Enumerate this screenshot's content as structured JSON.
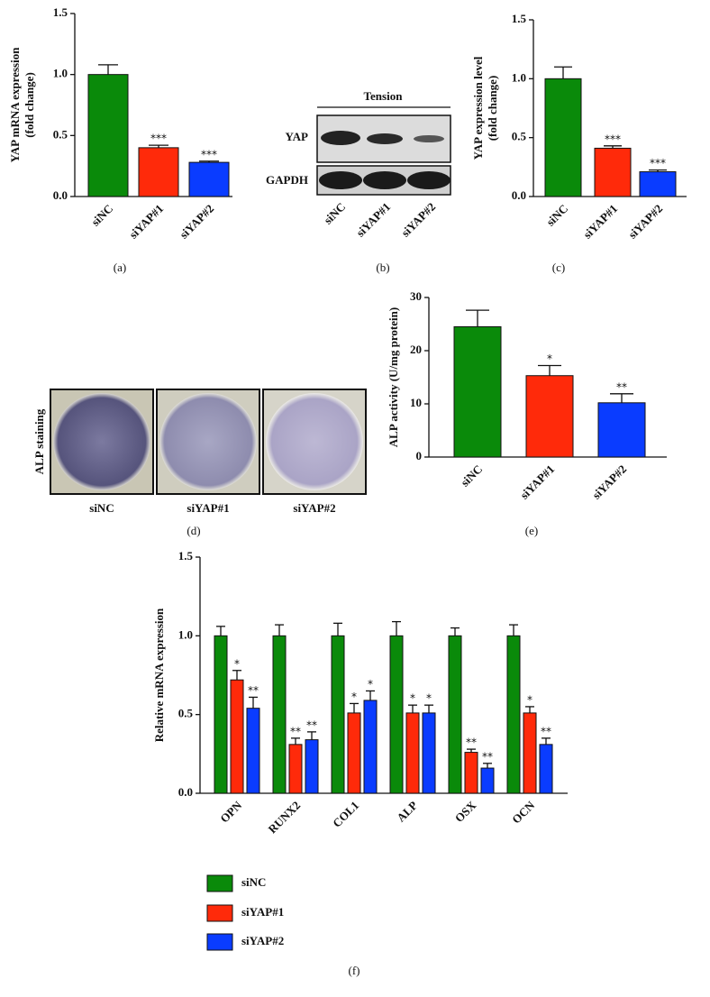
{
  "chart_data": [
    {
      "type": "bar",
      "caption": "(a)",
      "ylabel": [
        "YAP mRNA expression",
        "(fold change)"
      ],
      "categories": [
        "siNC",
        "siYAP#1",
        "siYAP#2"
      ],
      "values": [
        1.0,
        0.4,
        0.28
      ],
      "errors": [
        0.08,
        0.02,
        0.01
      ],
      "annotations": [
        null,
        "***",
        "***"
      ],
      "colors": [
        "#0a8a0a",
        "#ff2a0a",
        "#0a3cff"
      ],
      "ylim": [
        0,
        1.5
      ],
      "yticks": [
        {
          "value": 0,
          "label": "0.0"
        },
        {
          "value": 0.5,
          "label": "0.5"
        },
        {
          "value": 1,
          "label": "1.0"
        },
        {
          "value": 1.5,
          "label": "1.5"
        }
      ]
    },
    {
      "type": "bar",
      "caption": "(c)",
      "ylabel": [
        "YAP expression level",
        "(fold change)"
      ],
      "categories": [
        "siNC",
        "siYAP#1",
        "siYAP#2"
      ],
      "values": [
        1.0,
        0.41,
        0.21
      ],
      "errors": [
        0.1,
        0.02,
        0.015
      ],
      "annotations": [
        null,
        "***",
        "***"
      ],
      "colors": [
        "#0a8a0a",
        "#ff2a0a",
        "#0a3cff"
      ],
      "ylim": [
        0,
        1.5
      ],
      "yticks": [
        {
          "value": 0,
          "label": "0.0"
        },
        {
          "value": 0.5,
          "label": "0.5"
        },
        {
          "value": 1,
          "label": "1.0"
        },
        {
          "value": 1.5,
          "label": "1.5"
        }
      ]
    },
    {
      "type": "bar",
      "caption": "(e)",
      "ylabel": [
        "ALP activity (U/mg protein)"
      ],
      "categories": [
        "siNC",
        "siYAP#1",
        "siYAP#2"
      ],
      "values": [
        24.5,
        15.3,
        10.2
      ],
      "errors": [
        3.1,
        1.9,
        1.7
      ],
      "annotations": [
        null,
        "*",
        "**"
      ],
      "colors": [
        "#0a8a0a",
        "#ff2a0a",
        "#0a3cff"
      ],
      "ylim": [
        0,
        30
      ],
      "yticks": [
        0,
        10,
        20,
        30
      ]
    },
    {
      "type": "grouped-bar",
      "caption": "(f)",
      "ylabel": [
        "Relative mRNA expression"
      ],
      "categories": [
        "OPN",
        "RUNX2",
        "COL1",
        "ALP",
        "OSX",
        "OCN"
      ],
      "series": [
        {
          "name": "siNC",
          "color": "#0a8a0a",
          "values": [
            1,
            1,
            1,
            1,
            1,
            1
          ],
          "errors": [
            0.06,
            0.07,
            0.08,
            0.09,
            0.05,
            0.07
          ],
          "annotations": [
            null,
            null,
            null,
            null,
            null,
            null
          ]
        },
        {
          "name": "siYAP#1",
          "color": "#ff2a0a",
          "values": [
            0.72,
            0.31,
            0.51,
            0.51,
            0.26,
            0.51
          ],
          "errors": [
            0.06,
            0.04,
            0.06,
            0.05,
            0.02,
            0.04
          ],
          "annotations": [
            "*",
            "**",
            "*",
            "*",
            "**",
            "*"
          ]
        },
        {
          "name": "siYAP#2",
          "color": "#0a3cff",
          "values": [
            0.54,
            0.34,
            0.59,
            0.51,
            0.16,
            0.31
          ],
          "errors": [
            0.07,
            0.05,
            0.06,
            0.05,
            0.03,
            0.04
          ],
          "annotations": [
            "**",
            "**",
            "*",
            "*",
            "**",
            "**"
          ]
        }
      ],
      "ylim": [
        0,
        1.5
      ],
      "yticks": [
        {
          "value": 0,
          "label": "0.0"
        },
        {
          "value": 0.5,
          "label": "0.5"
        },
        {
          "value": 1,
          "label": "1.0"
        },
        {
          "value": 1.5,
          "label": "1.5"
        }
      ]
    }
  ],
  "blot": {
    "header": "Tension",
    "rows": [
      "YAP",
      "GAPDH"
    ],
    "lanes": [
      "siNC",
      "siYAP#1",
      "siYAP#2"
    ],
    "caption": "(b)"
  },
  "staining": {
    "label": "ALP staining",
    "samples": [
      "siNC",
      "siYAP#1",
      "siYAP#2"
    ],
    "caption": "(d)"
  }
}
